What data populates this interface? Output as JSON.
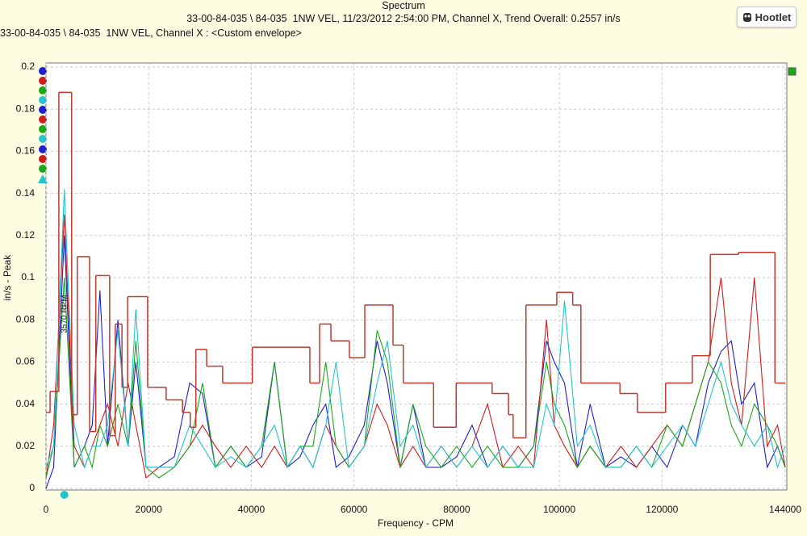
{
  "header": {
    "title": "Spectrum",
    "subtitle": "33-00-84-035 \\ 84-035  1NW VEL, 11/23/2012 2:54:00 PM, Channel X, Trend Overall: 0.2557 in/s",
    "caption": "33-00-84-035 \\ 84-035  1NW VEL, Channel X : <Custom envelope>",
    "button": "Hootlet"
  },
  "chart_data": {
    "type": "line",
    "xlabel": "Frequency - CPM",
    "ylabel": "in/s - Peak",
    "xlim": [
      0,
      144000
    ],
    "xticks": [
      0,
      20000,
      40000,
      60000,
      80000,
      100000,
      120000,
      144000
    ],
    "ylim": [
      0,
      0.2
    ],
    "yticks": [
      0,
      0.02,
      0.04,
      0.06,
      0.08,
      0.1,
      0.12,
      0.14,
      0.16,
      0.18,
      0.2
    ],
    "grid": true,
    "annotation": {
      "x": 3570,
      "text": "3570 RPM"
    },
    "series": [
      {
        "color": "#1f1fd0",
        "x": [
          0,
          1500,
          3570,
          5500,
          7500,
          9000,
          10500,
          12000,
          14000,
          16000,
          17500,
          19500,
          22000,
          25000,
          28000,
          30500,
          33000,
          36000,
          39000,
          42000,
          44500,
          47000,
          49500,
          52000,
          54500,
          56500,
          59000,
          62000,
          64500,
          66500,
          69000,
          71500,
          74000,
          77000,
          80000,
          83000,
          86000,
          89000,
          92000,
          95000,
          97500,
          99000,
          101000,
          103500,
          106000,
          109000,
          112000,
          115000,
          118000,
          121000,
          124000,
          126500,
          129000,
          131500,
          133500,
          135500,
          138000,
          140500,
          142500,
          144000
        ],
        "values": [
          0,
          0.01,
          0.12,
          0.01,
          0.02,
          0.03,
          0.094,
          0.02,
          0.08,
          0.02,
          0.06,
          0.01,
          0.01,
          0.015,
          0.05,
          0.045,
          0.01,
          0.02,
          0.01,
          0.015,
          0.06,
          0.01,
          0.015,
          0.03,
          0.04,
          0.01,
          0.015,
          0.03,
          0.07,
          0.05,
          0.01,
          0.04,
          0.01,
          0.01,
          0.015,
          0.03,
          0.01,
          0.02,
          0.01,
          0.02,
          0.07,
          0.06,
          0.05,
          0.01,
          0.04,
          0.01,
          0.015,
          0.01,
          0.02,
          0.01,
          0.03,
          0.02,
          0.05,
          0.065,
          0.07,
          0.04,
          0.05,
          0.01,
          0.02,
          0.01
        ]
      },
      {
        "color": "#d01c1c",
        "x": [
          0,
          1500,
          3570,
          5500,
          7500,
          9000,
          10500,
          12000,
          14000,
          16000,
          17500,
          19500,
          22000,
          25000,
          28000,
          30500,
          33000,
          36000,
          39000,
          42000,
          44500,
          47000,
          49500,
          52000,
          54500,
          56500,
          59000,
          62000,
          64500,
          66500,
          69000,
          71500,
          74000,
          77000,
          80000,
          83000,
          86000,
          89000,
          92000,
          95000,
          97500,
          99000,
          101000,
          103500,
          106000,
          109000,
          112000,
          115000,
          118000,
          121000,
          124000,
          126500,
          129000,
          131500,
          133500,
          135500,
          138000,
          140500,
          142500,
          144000
        ],
        "values": [
          0.005,
          0.03,
          0.13,
          0.02,
          0.01,
          0.02,
          0.03,
          0.04,
          0.02,
          0.05,
          0.03,
          0.005,
          0.01,
          0.01,
          0.02,
          0.03,
          0.02,
          0.01,
          0.02,
          0.01,
          0.02,
          0.01,
          0.02,
          0.01,
          0.03,
          0.02,
          0.01,
          0.02,
          0.04,
          0.03,
          0.01,
          0.02,
          0.01,
          0.02,
          0.01,
          0.02,
          0.04,
          0.01,
          0.02,
          0.01,
          0.08,
          0.03,
          0.02,
          0.01,
          0.02,
          0.01,
          0.02,
          0.01,
          0.02,
          0.03,
          0.02,
          0.04,
          0.06,
          0.1,
          0.05,
          0.03,
          0.1,
          0.02,
          0.03,
          0.01
        ]
      },
      {
        "color": "#1aa81a",
        "x": [
          0,
          1500,
          3570,
          5500,
          7500,
          9000,
          10500,
          12000,
          14000,
          16000,
          17500,
          19500,
          22000,
          25000,
          28000,
          30500,
          33000,
          36000,
          39000,
          42000,
          44500,
          47000,
          49500,
          52000,
          54500,
          56500,
          59000,
          62000,
          64500,
          66500,
          69000,
          71500,
          74000,
          77000,
          80000,
          83000,
          86000,
          89000,
          92000,
          95000,
          97500,
          99000,
          101000,
          103500,
          106000,
          109000,
          112000,
          115000,
          118000,
          121000,
          124000,
          126500,
          129000,
          131500,
          133500,
          135500,
          138000,
          140500,
          142500,
          144000
        ],
        "values": [
          0.005,
          0.02,
          0.1,
          0.01,
          0.02,
          0.01,
          0.03,
          0.02,
          0.04,
          0.02,
          0.07,
          0.01,
          0.005,
          0.01,
          0.02,
          0.05,
          0.01,
          0.02,
          0.01,
          0.02,
          0.06,
          0.01,
          0.02,
          0.02,
          0.06,
          0.02,
          0.01,
          0.02,
          0.075,
          0.06,
          0.01,
          0.04,
          0.02,
          0.01,
          0.02,
          0.01,
          0.02,
          0.01,
          0.01,
          0.02,
          0.06,
          0.04,
          0.03,
          0.01,
          0.02,
          0.01,
          0.01,
          0.02,
          0.01,
          0.03,
          0.02,
          0.04,
          0.06,
          0.05,
          0.03,
          0.02,
          0.04,
          0.03,
          0.02,
          0.01
        ]
      },
      {
        "color": "#22c4d0",
        "x": [
          0,
          1500,
          3570,
          5500,
          7500,
          9000,
          10500,
          12000,
          14000,
          16000,
          17500,
          19500,
          22000,
          25000,
          28000,
          30500,
          33000,
          36000,
          39000,
          42000,
          44500,
          47000,
          49500,
          52000,
          54500,
          56500,
          59000,
          62000,
          64500,
          66500,
          69000,
          71500,
          74000,
          77000,
          80000,
          83000,
          86000,
          89000,
          92000,
          95000,
          97500,
          99000,
          101000,
          103500,
          106000,
          109000,
          112000,
          115000,
          118000,
          121000,
          124000,
          126500,
          129000,
          131500,
          133500,
          135500,
          138000,
          140500,
          142500,
          144000
        ],
        "values": [
          0.01,
          0.02,
          0.142,
          0.03,
          0.01,
          0.02,
          0.02,
          0.03,
          0.075,
          0.02,
          0.085,
          0.01,
          0.01,
          0.01,
          0.03,
          0.02,
          0.01,
          0.015,
          0.01,
          0.02,
          0.03,
          0.01,
          0.02,
          0.01,
          0.03,
          0.06,
          0.01,
          0.02,
          0.05,
          0.07,
          0.02,
          0.03,
          0.01,
          0.02,
          0.01,
          0.02,
          0.01,
          0.02,
          0.01,
          0.01,
          0.04,
          0.03,
          0.089,
          0.02,
          0.03,
          0.01,
          0.01,
          0.02,
          0.01,
          0.02,
          0.03,
          0.02,
          0.04,
          0.06,
          0.04,
          0.03,
          0.02,
          0.03,
          0.01,
          0.02
        ]
      },
      {
        "color": "#c0392b",
        "step": true,
        "x": [
          0,
          800,
          2500,
          5000,
          6100,
          8500,
          9700,
          12400,
          13500,
          14800,
          15900,
          19800,
          23400,
          26600,
          28100,
          29200,
          31300,
          34400,
          40200,
          51400,
          53300,
          55500,
          59100,
          62100,
          67600,
          69600,
          75500,
          79900,
          86900,
          90100,
          91000,
          93500,
          99500,
          102600,
          104200,
          111800,
          115200,
          120700,
          125900,
          129400,
          134900,
          142000,
          144000
        ],
        "values": [
          0.036,
          0.046,
          0.188,
          0.035,
          0.11,
          0.027,
          0.101,
          0.025,
          0.078,
          0.048,
          0.091,
          0.048,
          0.042,
          0.036,
          0.029,
          0.066,
          0.058,
          0.05,
          0.067,
          0.05,
          0.078,
          0.07,
          0.062,
          0.087,
          0.068,
          0.05,
          0.029,
          0.05,
          0.045,
          0.035,
          0.024,
          0.087,
          0.093,
          0.087,
          0.05,
          0.045,
          0.036,
          0.05,
          0.063,
          0.111,
          0.112,
          0.05,
          0.05
        ]
      }
    ]
  }
}
